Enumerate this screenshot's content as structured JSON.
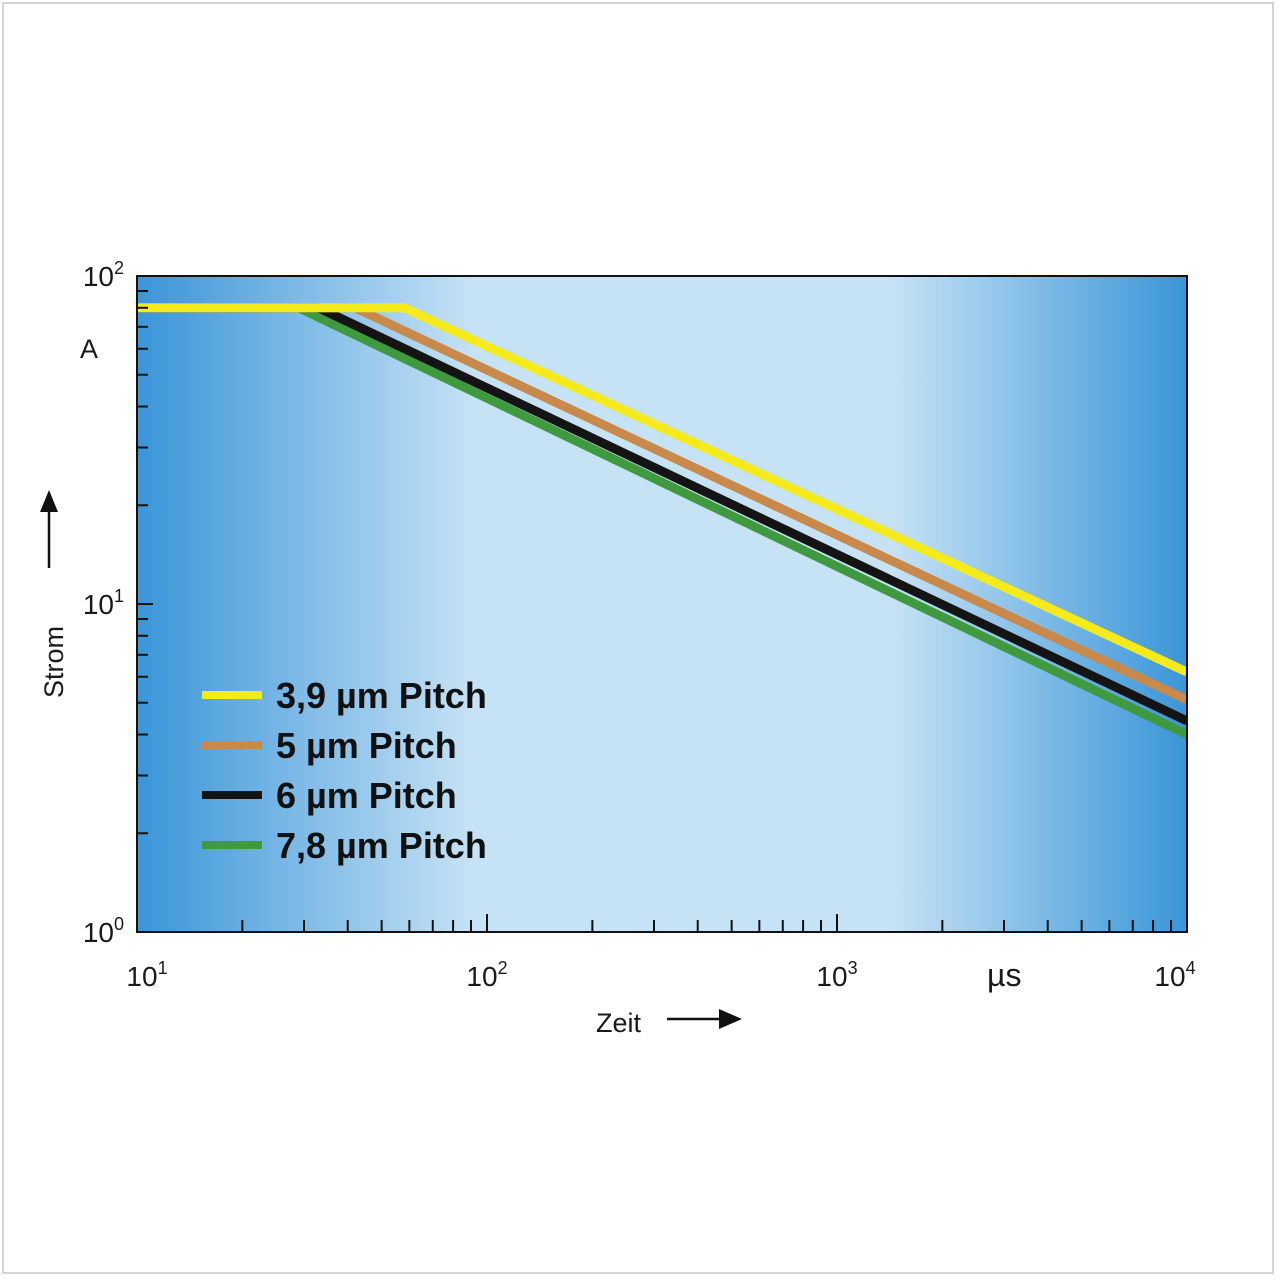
{
  "chart_data": {
    "type": "line",
    "x_scale": "log",
    "y_scale": "log",
    "xlim": [
      10,
      10000
    ],
    "ylim": [
      1,
      100
    ],
    "x_ticks": [
      {
        "value": 10,
        "base": "10",
        "exp": "1"
      },
      {
        "value": 100,
        "base": "10",
        "exp": "2"
      },
      {
        "value": 1000,
        "base": "10",
        "exp": "3"
      },
      {
        "value": 10000,
        "base": "10",
        "exp": "4"
      }
    ],
    "y_ticks": [
      {
        "value": 1,
        "base": "10",
        "exp": "0"
      },
      {
        "value": 10,
        "base": "10",
        "exp": "1"
      },
      {
        "value": 100,
        "base": "10",
        "exp": "2"
      }
    ],
    "xlabel": "Zeit",
    "x_unit": "µs",
    "ylabel": "Strom",
    "y_unit": "A",
    "background_gradient": [
      "#3a95d8",
      "#c6e2f5",
      "#3a95d8"
    ],
    "series": [
      {
        "name": "3,9 µm Pitch",
        "color": "#f5ea1c",
        "x": [
          10,
          58,
          10000
        ],
        "y": [
          80,
          80,
          6.2
        ]
      },
      {
        "name": "5 µm Pitch",
        "color": "#c8894a",
        "x": [
          10,
          42,
          10000
        ],
        "y": [
          80,
          80,
          5.1
        ]
      },
      {
        "name": "6 µm Pitch",
        "color": "#141414",
        "x": [
          10,
          33,
          10000
        ],
        "y": [
          80,
          80,
          4.4
        ]
      },
      {
        "name": "7,8 µm Pitch",
        "color": "#3f9a3f",
        "x": [
          10,
          29,
          10000
        ],
        "y": [
          80,
          80,
          4.0
        ]
      }
    ],
    "legend_position": "lower-left"
  }
}
